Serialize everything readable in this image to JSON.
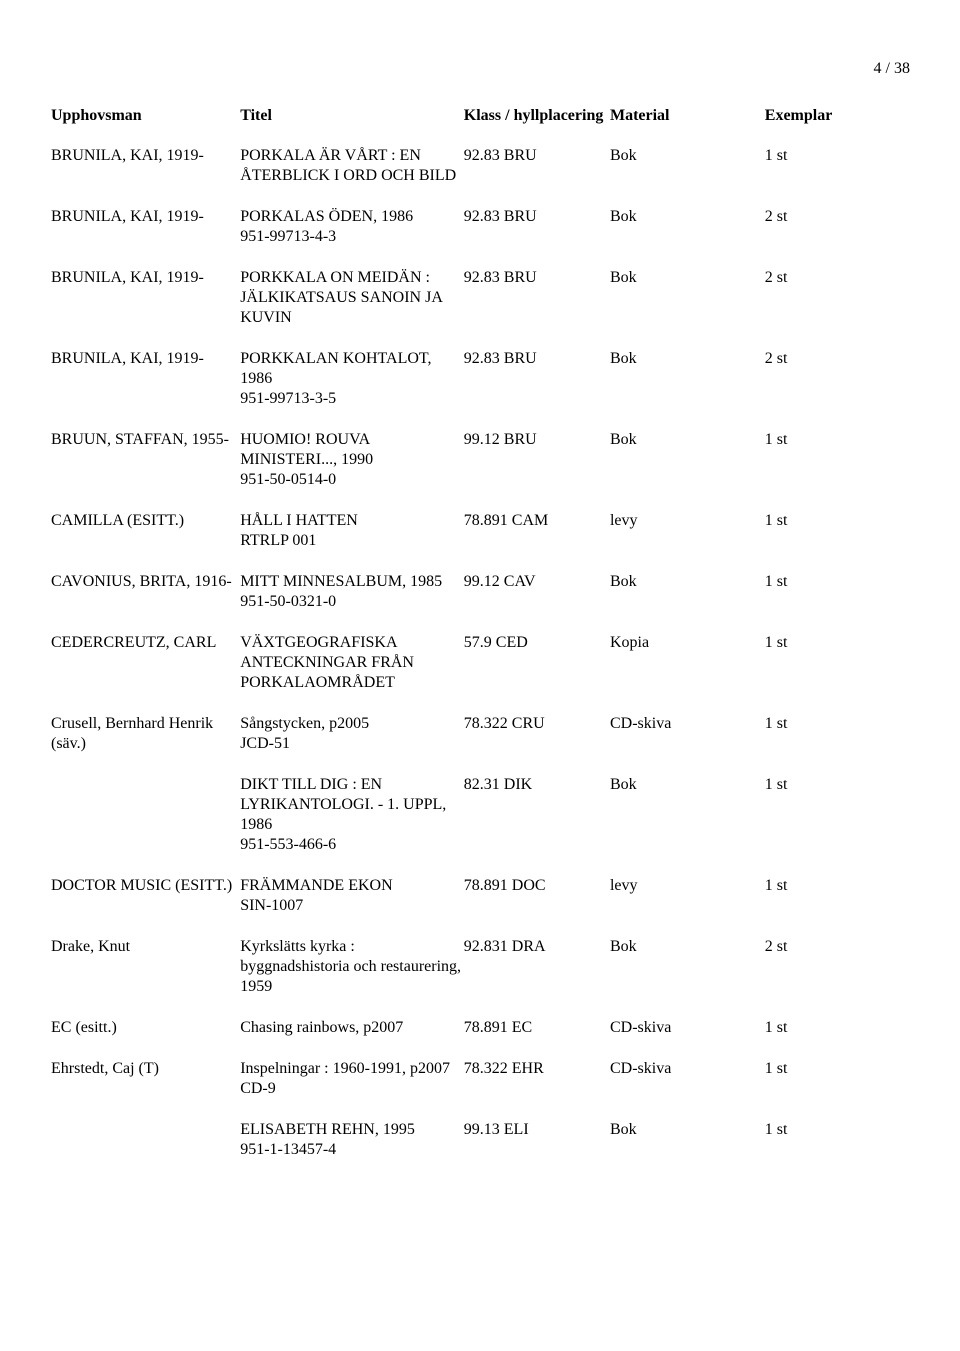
{
  "page_number": "4 / 38",
  "headers": {
    "author": "Upphovsman",
    "title": "Titel",
    "klass": "Klass / hyllplacering",
    "material": "Material",
    "exemplar": "Exemplar"
  },
  "rows": [
    {
      "author": "BRUNILA, KAI, 1919-",
      "title": "PORKALA ÄR VÅRT : EN ÅTERBLICK I ORD OCH BILD",
      "klass": "92.83 BRU",
      "material": "Bok",
      "exemplar": "1 st"
    },
    {
      "author": "BRUNILA, KAI, 1919-",
      "title": "PORKALAS ÖDEN, 1986\n951-99713-4-3",
      "klass": "92.83 BRU",
      "material": "Bok",
      "exemplar": "2 st"
    },
    {
      "author": "BRUNILA, KAI, 1919-",
      "title": "PORKKALA ON MEIDÄN : JÄLKIKATSAUS SANOIN JA KUVIN",
      "klass": "92.83 BRU",
      "material": "Bok",
      "exemplar": "2 st"
    },
    {
      "author": "BRUNILA, KAI, 1919-",
      "title": "PORKKALAN KOHTALOT, 1986\n951-99713-3-5",
      "klass": "92.83 BRU",
      "material": "Bok",
      "exemplar": "2 st"
    },
    {
      "author": "BRUUN, STAFFAN, 1955-",
      "title": "HUOMIO! ROUVA MINISTERI..., 1990\n951-50-0514-0",
      "klass": "99.12 BRU",
      "material": "Bok",
      "exemplar": "1 st"
    },
    {
      "author": "CAMILLA (ESITT.)",
      "title": "HÅLL I HATTEN\nRTRLP 001",
      "klass": "78.891 CAM",
      "material": "levy",
      "exemplar": "1 st"
    },
    {
      "author": "CAVONIUS, BRITA, 1916-",
      "title": "MITT MINNESALBUM, 1985\n951-50-0321-0",
      "klass": "99.12 CAV",
      "material": "Bok",
      "exemplar": "1 st"
    },
    {
      "author": "CEDERCREUTZ, CARL",
      "title": "VÄXTGEOGRAFISKA ANTECKNINGAR FRÅN PORKALAOMRÅDET",
      "klass": "57.9 CED",
      "material": "Kopia",
      "exemplar": "1 st"
    },
    {
      "author": "Crusell, Bernhard Henrik (säv.)",
      "title": "Sångstycken, p2005\nJCD-51",
      "klass": "78.322 CRU",
      "material": "CD-skiva",
      "exemplar": "1 st"
    },
    {
      "author": "",
      "title": "DIKT TILL DIG : EN LYRIKANTOLOGI. - 1. UPPL, 1986\n951-553-466-6",
      "klass": "82.31 DIK",
      "material": "Bok",
      "exemplar": "1 st"
    },
    {
      "author": "DOCTOR MUSIC (ESITT.)",
      "title": "FRÄMMANDE EKON\nSIN-1007",
      "klass": "78.891 DOC",
      "material": "levy",
      "exemplar": "1 st"
    },
    {
      "author": "Drake, Knut",
      "title": "Kyrkslätts kyrka : byggnadshistoria och restaurering, 1959",
      "klass": "92.831 DRA",
      "material": "Bok",
      "exemplar": "2 st"
    },
    {
      "author": "EC (esitt.)",
      "title": "Chasing rainbows, p2007",
      "klass": "78.891 EC",
      "material": "CD-skiva",
      "exemplar": "1 st"
    },
    {
      "author": "Ehrstedt, Caj (T)",
      "title": "Inspelningar : 1960-1991, p2007\nCD-9",
      "klass": "78.322 EHR",
      "material": "CD-skiva",
      "exemplar": "1 st"
    },
    {
      "author": "",
      "title": "ELISABETH REHN, 1995\n951-1-13457-4",
      "klass": "99.13 ELI",
      "material": "Bok",
      "exemplar": "1 st"
    }
  ]
}
